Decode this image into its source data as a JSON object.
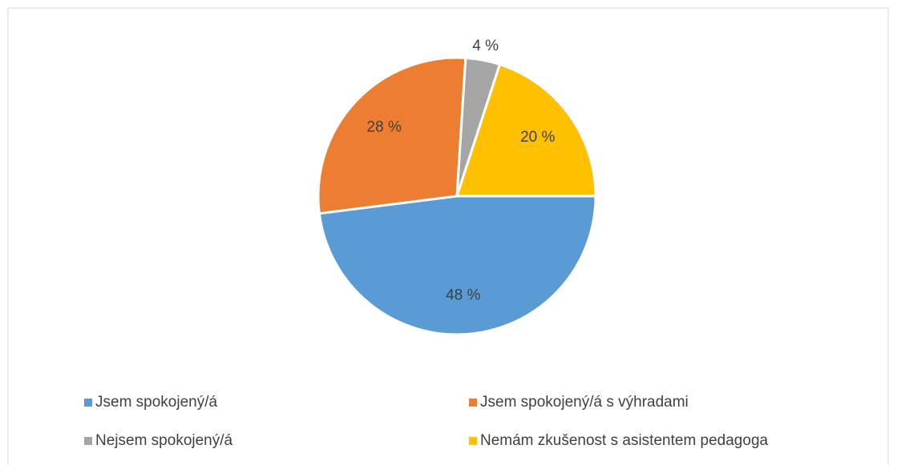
{
  "chart_data": {
    "type": "pie",
    "categories": [
      "Jsem spokojený/á",
      "Jsem spokojený/á s výhradami",
      "Nejsem spokojený/á",
      "Nemám zkušenost s asistentem pedagoga"
    ],
    "values": [
      48,
      28,
      4,
      20
    ],
    "value_labels": [
      "48 %",
      "28 %",
      "4 %",
      "20 %"
    ],
    "colors": [
      "#5b9bd5",
      "#ed7d31",
      "#a5a5a5",
      "#ffc000"
    ],
    "legend": "bottom"
  }
}
